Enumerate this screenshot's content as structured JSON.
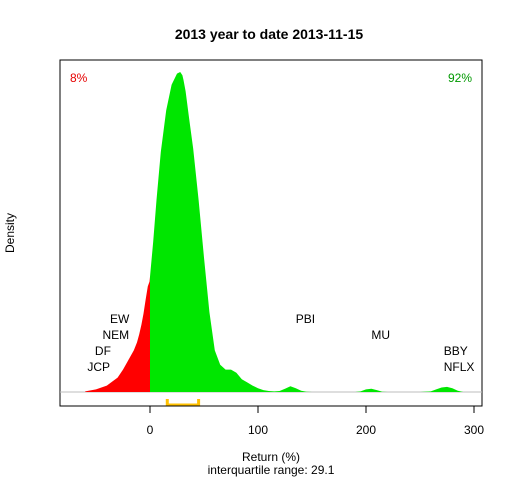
{
  "chart_data": {
    "type": "area",
    "title": "2013  year to date 2013-11-15",
    "xlabel": "Return (%)",
    "ylabel": "Density",
    "subtitle": "interquartile range: 29.1",
    "xlim": [
      -84,
      308
    ],
    "ylim": [
      0,
      1.0
    ],
    "xticks": [
      0,
      100,
      200,
      300
    ],
    "xtick_labels": [
      "0",
      "100",
      "200",
      "300"
    ],
    "grid": false,
    "percent_negative": "8%",
    "percent_positive": "92%",
    "colors": {
      "negative": "#ff0000",
      "positive": "#00e600",
      "iqr": "#ffc000",
      "negative_text": "#e60000",
      "positive_text": "#009900"
    },
    "density": {
      "x": [
        -60,
        -50,
        -40,
        -30,
        -25,
        -20,
        -15,
        -12,
        -10,
        -8,
        -6,
        -4,
        -2,
        -0.5,
        0,
        3,
        6,
        10,
        15,
        20,
        25,
        28,
        30,
        31,
        33,
        36,
        40,
        45,
        50,
        55,
        60,
        65,
        70,
        75,
        80,
        85,
        90,
        95,
        100,
        105,
        110,
        115,
        120,
        125,
        130,
        135,
        140,
        145,
        150,
        160,
        170,
        180,
        190,
        195,
        200,
        205,
        210,
        215,
        220,
        230,
        240,
        250,
        260,
        265,
        270,
        275,
        280,
        285,
        290
      ],
      "y": [
        0.002,
        0.008,
        0.02,
        0.045,
        0.07,
        0.1,
        0.13,
        0.155,
        0.18,
        0.21,
        0.245,
        0.29,
        0.33,
        0.345,
        0.36,
        0.47,
        0.6,
        0.75,
        0.88,
        0.96,
        0.995,
        1.0,
        0.99,
        0.975,
        0.94,
        0.86,
        0.76,
        0.6,
        0.42,
        0.25,
        0.13,
        0.085,
        0.07,
        0.07,
        0.06,
        0.04,
        0.03,
        0.02,
        0.012,
        0.006,
        0.003,
        0.002,
        0.003,
        0.01,
        0.018,
        0.012,
        0.004,
        0.001,
        0.0,
        0.0,
        0.0,
        0.0,
        0.0,
        0.002,
        0.008,
        0.01,
        0.006,
        0.001,
        0.0,
        0.0,
        0.0,
        0.0,
        0.002,
        0.008,
        0.014,
        0.016,
        0.012,
        0.004,
        0.0
      ]
    },
    "iqr": [
      16,
      45
    ],
    "annotations": [
      {
        "text": "EW",
        "x": -37,
        "y": 0.215
      },
      {
        "text": "NEM",
        "x": -44,
        "y": 0.165
      },
      {
        "text": "DF",
        "x": -51,
        "y": 0.115
      },
      {
        "text": "JCP",
        "x": -58,
        "y": 0.065
      },
      {
        "text": "PBI",
        "x": 135,
        "y": 0.215
      },
      {
        "text": "MU",
        "x": 205,
        "y": 0.165
      },
      {
        "text": "BBY",
        "x": 272,
        "y": 0.115
      },
      {
        "text": "NFLX",
        "x": 272,
        "y": 0.065
      }
    ]
  }
}
